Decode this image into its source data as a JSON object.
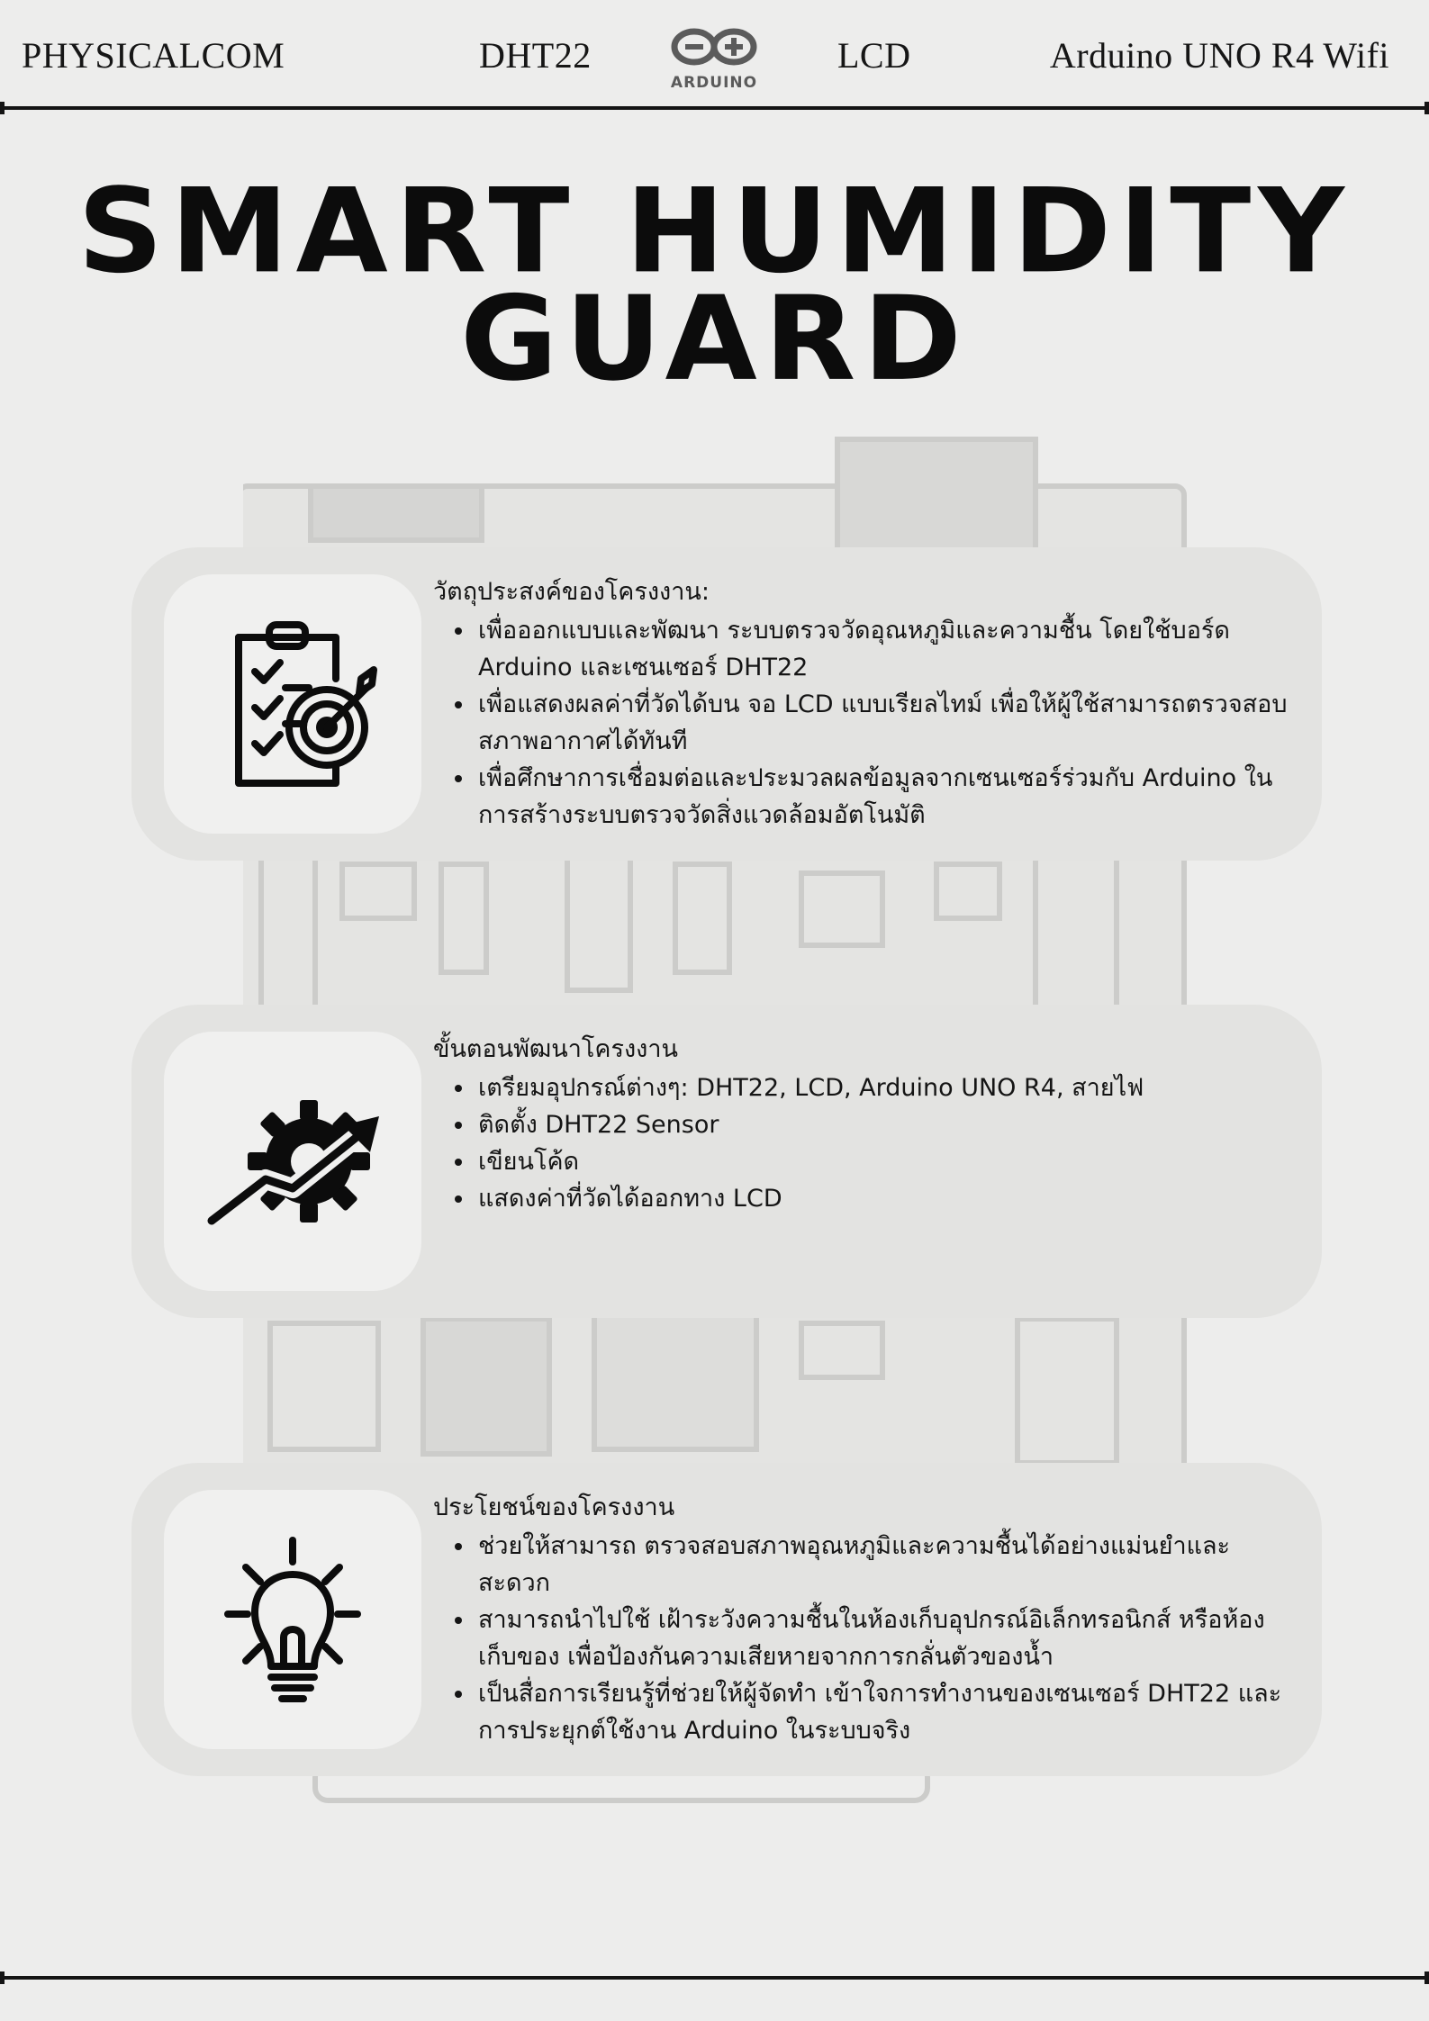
{
  "header": {
    "left": "PHYSICALCOM",
    "center_left": "DHT22",
    "logo_text": "ARDUINO",
    "center_right": "LCD",
    "right": "Arduino UNO R4 Wifi"
  },
  "title": {
    "line1": "SMART HUMIDITY",
    "line2": "GUARD"
  },
  "sections": [
    {
      "icon": "clipboard-target-icon",
      "heading": "วัตถุประสงค์ของโครงงาน:",
      "items": [
        "เพื่อออกแบบและพัฒนา ระบบตรวจวัดอุณหภูมิและความชื้น โดยใช้บอร์ด Arduino และเซนเซอร์ DHT22",
        "เพื่อแสดงผลค่าที่วัดได้บน จอ LCD แบบเรียลไทม์ เพื่อให้ผู้ใช้สามารถตรวจสอบสภาพอากาศได้ทันที",
        "เพื่อศึกษาการเชื่อมต่อและประมวลผลข้อมูลจากเซนเซอร์ร่วมกับ Arduino ในการสร้างระบบตรวจวัดสิ่งแวดล้อมอัตโนมัติ"
      ]
    },
    {
      "icon": "gear-growth-arrow-icon",
      "heading": "ขั้นตอนพัฒนาโครงงาน",
      "items": [
        "เตรียมอุปกรณ์ต่างๆ: DHT22, LCD, Arduino UNO R4, สายไฟ",
        " ติดตั้ง DHT22 Sensor",
        "เขียนโค้ด",
        "แสดงค่าที่วัดได้ออกทาง LCD"
      ]
    },
    {
      "icon": "lightbulb-icon",
      "heading": "ประโยชน์ของโครงงาน",
      "items": [
        "ช่วยให้สามารถ ตรวจสอบสภาพอุณหภูมิและความชื้นได้อย่างแม่นยำและสะดวก",
        "สามารถนำไปใช้ เฝ้าระวังความชื้นในห้องเก็บอุปกรณ์อิเล็กทรอนิกส์ หรือห้องเก็บของ เพื่อป้องกันความเสียหายจากการกลั่นตัวของน้ำ",
        "เป็นสื่อการเรียนรู้ที่ช่วยให้ผู้จัดทำ เข้าใจการทำงานของเซนเซอร์ DHT22 และการประยุกต์ใช้งาน Arduino ในระบบจริง"
      ]
    }
  ],
  "colors": {
    "background": "#ededec",
    "card": "#e3e3e1",
    "icon_box": "#f0f0ef",
    "ink": "#111111"
  }
}
